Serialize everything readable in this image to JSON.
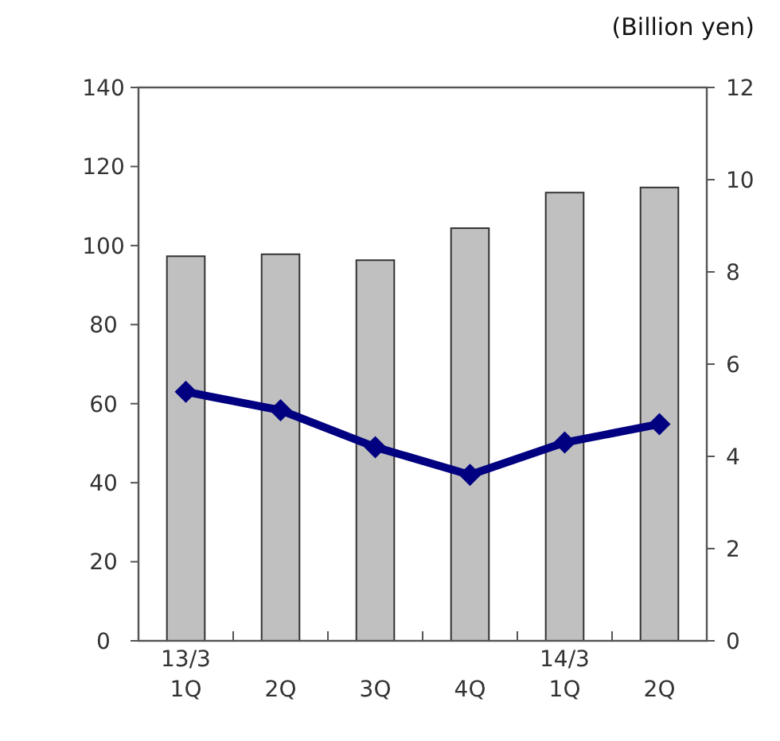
{
  "chart_data": {
    "type": "bar",
    "y2label": "(Billion yen)",
    "categories": [
      "13/3\n1Q",
      "2Q",
      "3Q",
      "4Q",
      "14/3\n1Q",
      "2Q"
    ],
    "series": [
      {
        "color": "#c0c0c0",
        "values": [
          97.3,
          97.8,
          96.3,
          104.4,
          113.4,
          114.7
        ]
      },
      {
        "type": "line",
        "axis": "y2",
        "color": "#000080",
        "values": [
          5.4,
          5.0,
          4.2,
          3.6,
          4.3,
          4.7
        ]
      }
    ],
    "ylim": [
      0,
      140
    ],
    "yticks": [
      0,
      20,
      40,
      60,
      80,
      100,
      120,
      140
    ],
    "y2lim": [
      0,
      12
    ],
    "y2ticks": [
      0,
      2,
      4,
      6,
      8,
      10,
      12
    ],
    "marker": "diamond",
    "grid": false
  }
}
